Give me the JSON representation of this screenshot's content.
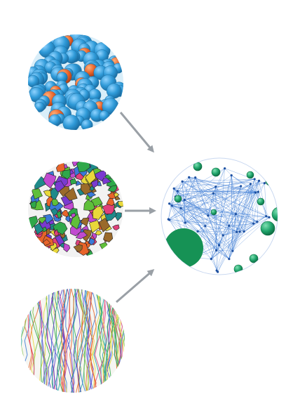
{
  "figure": {
    "description_free": true,
    "panels": [
      {
        "id": "spheres",
        "icon": "packed-spheres-icon",
        "colors": [
          "#2f9ad8",
          "#e8642a",
          "#e7d23a"
        ]
      },
      {
        "id": "fragments",
        "icon": "colored-fragments-icon",
        "colors": [
          "#7a3ad0",
          "#2fa84a",
          "#e8d83a",
          "#e0407a",
          "#3a7ad8",
          "#e8642a"
        ]
      },
      {
        "id": "fibers",
        "icon": "fiber-strands-icon",
        "colors": [
          "#2fa84a",
          "#3a7ad8",
          "#e8d83a",
          "#e0407a",
          "#5a3ad0"
        ]
      },
      {
        "id": "network",
        "icon": "pore-network-icon",
        "colors": [
          "#2a6fd0",
          "#1fa36a",
          "#169255"
        ]
      }
    ],
    "arrow_color": "#9aa0a6",
    "connections": [
      {
        "from": "spheres",
        "to": "network"
      },
      {
        "from": "fragments",
        "to": "network"
      },
      {
        "from": "fibers",
        "to": "network"
      }
    ]
  }
}
